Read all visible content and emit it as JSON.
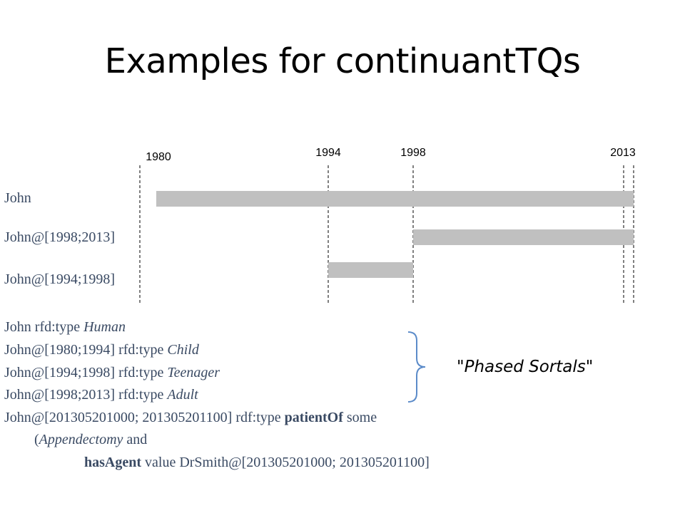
{
  "title": "Examples for continuantTQs",
  "timeline": {
    "years": [
      {
        "label": "1980",
        "value": 1980
      },
      {
        "label": "1994",
        "value": 1994
      },
      {
        "label": "1998",
        "value": 1998
      },
      {
        "label": "2013",
        "value": 2013
      }
    ],
    "rows": [
      {
        "label": "John",
        "start": 1980,
        "end": 2013
      },
      {
        "label": "John@[1998;2013]",
        "start": 1998,
        "end": 2013
      },
      {
        "label": "John@[1994;1998]",
        "start": 1994,
        "end": 1998
      }
    ],
    "bar_color": "#c0c0c0"
  },
  "statements": [
    {
      "subject": "John rfd:type ",
      "type": "Human"
    },
    {
      "subject": "John@[1980;1994] rfd:type ",
      "type": "Child"
    },
    {
      "subject": "John@[1994;1998] rfd:type ",
      "type": "Teenager"
    },
    {
      "subject": "John@[1998;2013] rfd:type ",
      "type": "Adult"
    }
  ],
  "complex_statement": {
    "line1_prefix": "John@[201305201000; 201305201100] rdf:type ",
    "line1_keyword": "patientOf",
    "line1_suffix": " some",
    "line2_open": "(",
    "line2_class": "Appendectomy",
    "line2_suffix": " and",
    "line3_keyword": "hasAgent",
    "line3_suffix": " value DrSmith@[201305201000; 201305201100]"
  },
  "callout": "\"Phased Sortals\""
}
